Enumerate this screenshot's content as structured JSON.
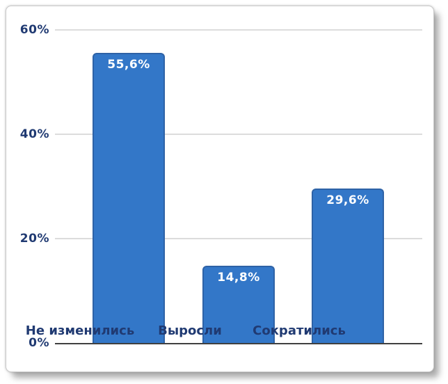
{
  "chart_data": {
    "type": "bar",
    "title": "",
    "xlabel": "",
    "ylabel": "",
    "categories": [
      "Не изменились",
      "Выросли",
      "Сократились"
    ],
    "values": [
      55.6,
      14.8,
      29.6
    ],
    "value_labels": [
      "55,6%",
      "14,8%",
      "29,6%"
    ],
    "y_ticks": [
      "60%",
      "40%",
      "20%",
      "0%"
    ],
    "y_tick_values": [
      60,
      40,
      20,
      0
    ],
    "ylim": [
      0,
      60
    ],
    "grid": true,
    "legend": "none",
    "colors": {
      "bar_fill": "#3377C8",
      "bar_border": "#2E62A6",
      "axis_text": "#203A72",
      "value_text": "#FFFFFF",
      "gridline": "#DCDCDC",
      "axis_line": "#404040",
      "card_background": "#FFFFFF"
    }
  }
}
